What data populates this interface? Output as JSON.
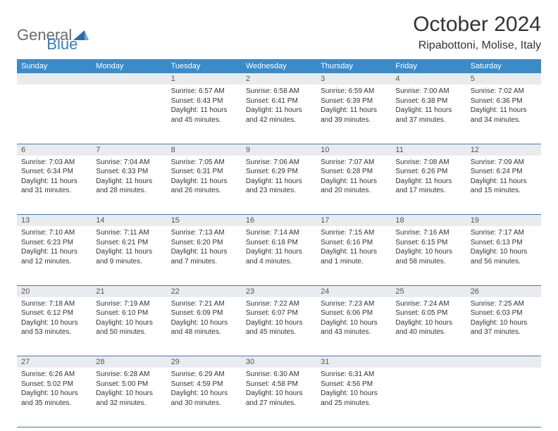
{
  "brand": {
    "part1": "General",
    "part2": "Blue"
  },
  "header": {
    "title": "October 2024",
    "location": "Ripabottoni, Molise, Italy"
  },
  "colors": {
    "header_bg": "#3b8bc9",
    "header_text": "#ffffff",
    "daynum_bg": "#e9ecef",
    "border": "#3b7bbf",
    "brand_gray": "#6b6b6b",
    "brand_blue": "#3b7bbf"
  },
  "dow": [
    "Sunday",
    "Monday",
    "Tuesday",
    "Wednesday",
    "Thursday",
    "Friday",
    "Saturday"
  ],
  "weeks": [
    [
      {
        "num": "",
        "sunrise": "",
        "sunset": "",
        "daylight": ""
      },
      {
        "num": "",
        "sunrise": "",
        "sunset": "",
        "daylight": ""
      },
      {
        "num": "1",
        "sunrise": "Sunrise: 6:57 AM",
        "sunset": "Sunset: 6:43 PM",
        "daylight": "Daylight: 11 hours and 45 minutes."
      },
      {
        "num": "2",
        "sunrise": "Sunrise: 6:58 AM",
        "sunset": "Sunset: 6:41 PM",
        "daylight": "Daylight: 11 hours and 42 minutes."
      },
      {
        "num": "3",
        "sunrise": "Sunrise: 6:59 AM",
        "sunset": "Sunset: 6:39 PM",
        "daylight": "Daylight: 11 hours and 39 minutes."
      },
      {
        "num": "4",
        "sunrise": "Sunrise: 7:00 AM",
        "sunset": "Sunset: 6:38 PM",
        "daylight": "Daylight: 11 hours and 37 minutes."
      },
      {
        "num": "5",
        "sunrise": "Sunrise: 7:02 AM",
        "sunset": "Sunset: 6:36 PM",
        "daylight": "Daylight: 11 hours and 34 minutes."
      }
    ],
    [
      {
        "num": "6",
        "sunrise": "Sunrise: 7:03 AM",
        "sunset": "Sunset: 6:34 PM",
        "daylight": "Daylight: 11 hours and 31 minutes."
      },
      {
        "num": "7",
        "sunrise": "Sunrise: 7:04 AM",
        "sunset": "Sunset: 6:33 PM",
        "daylight": "Daylight: 11 hours and 28 minutes."
      },
      {
        "num": "8",
        "sunrise": "Sunrise: 7:05 AM",
        "sunset": "Sunset: 6:31 PM",
        "daylight": "Daylight: 11 hours and 26 minutes."
      },
      {
        "num": "9",
        "sunrise": "Sunrise: 7:06 AM",
        "sunset": "Sunset: 6:29 PM",
        "daylight": "Daylight: 11 hours and 23 minutes."
      },
      {
        "num": "10",
        "sunrise": "Sunrise: 7:07 AM",
        "sunset": "Sunset: 6:28 PM",
        "daylight": "Daylight: 11 hours and 20 minutes."
      },
      {
        "num": "11",
        "sunrise": "Sunrise: 7:08 AM",
        "sunset": "Sunset: 6:26 PM",
        "daylight": "Daylight: 11 hours and 17 minutes."
      },
      {
        "num": "12",
        "sunrise": "Sunrise: 7:09 AM",
        "sunset": "Sunset: 6:24 PM",
        "daylight": "Daylight: 11 hours and 15 minutes."
      }
    ],
    [
      {
        "num": "13",
        "sunrise": "Sunrise: 7:10 AM",
        "sunset": "Sunset: 6:23 PM",
        "daylight": "Daylight: 11 hours and 12 minutes."
      },
      {
        "num": "14",
        "sunrise": "Sunrise: 7:11 AM",
        "sunset": "Sunset: 6:21 PM",
        "daylight": "Daylight: 11 hours and 9 minutes."
      },
      {
        "num": "15",
        "sunrise": "Sunrise: 7:13 AM",
        "sunset": "Sunset: 6:20 PM",
        "daylight": "Daylight: 11 hours and 7 minutes."
      },
      {
        "num": "16",
        "sunrise": "Sunrise: 7:14 AM",
        "sunset": "Sunset: 6:18 PM",
        "daylight": "Daylight: 11 hours and 4 minutes."
      },
      {
        "num": "17",
        "sunrise": "Sunrise: 7:15 AM",
        "sunset": "Sunset: 6:16 PM",
        "daylight": "Daylight: 11 hours and 1 minute."
      },
      {
        "num": "18",
        "sunrise": "Sunrise: 7:16 AM",
        "sunset": "Sunset: 6:15 PM",
        "daylight": "Daylight: 10 hours and 58 minutes."
      },
      {
        "num": "19",
        "sunrise": "Sunrise: 7:17 AM",
        "sunset": "Sunset: 6:13 PM",
        "daylight": "Daylight: 10 hours and 56 minutes."
      }
    ],
    [
      {
        "num": "20",
        "sunrise": "Sunrise: 7:18 AM",
        "sunset": "Sunset: 6:12 PM",
        "daylight": "Daylight: 10 hours and 53 minutes."
      },
      {
        "num": "21",
        "sunrise": "Sunrise: 7:19 AM",
        "sunset": "Sunset: 6:10 PM",
        "daylight": "Daylight: 10 hours and 50 minutes."
      },
      {
        "num": "22",
        "sunrise": "Sunrise: 7:21 AM",
        "sunset": "Sunset: 6:09 PM",
        "daylight": "Daylight: 10 hours and 48 minutes."
      },
      {
        "num": "23",
        "sunrise": "Sunrise: 7:22 AM",
        "sunset": "Sunset: 6:07 PM",
        "daylight": "Daylight: 10 hours and 45 minutes."
      },
      {
        "num": "24",
        "sunrise": "Sunrise: 7:23 AM",
        "sunset": "Sunset: 6:06 PM",
        "daylight": "Daylight: 10 hours and 43 minutes."
      },
      {
        "num": "25",
        "sunrise": "Sunrise: 7:24 AM",
        "sunset": "Sunset: 6:05 PM",
        "daylight": "Daylight: 10 hours and 40 minutes."
      },
      {
        "num": "26",
        "sunrise": "Sunrise: 7:25 AM",
        "sunset": "Sunset: 6:03 PM",
        "daylight": "Daylight: 10 hours and 37 minutes."
      }
    ],
    [
      {
        "num": "27",
        "sunrise": "Sunrise: 6:26 AM",
        "sunset": "Sunset: 5:02 PM",
        "daylight": "Daylight: 10 hours and 35 minutes."
      },
      {
        "num": "28",
        "sunrise": "Sunrise: 6:28 AM",
        "sunset": "Sunset: 5:00 PM",
        "daylight": "Daylight: 10 hours and 32 minutes."
      },
      {
        "num": "29",
        "sunrise": "Sunrise: 6:29 AM",
        "sunset": "Sunset: 4:59 PM",
        "daylight": "Daylight: 10 hours and 30 minutes."
      },
      {
        "num": "30",
        "sunrise": "Sunrise: 6:30 AM",
        "sunset": "Sunset: 4:58 PM",
        "daylight": "Daylight: 10 hours and 27 minutes."
      },
      {
        "num": "31",
        "sunrise": "Sunrise: 6:31 AM",
        "sunset": "Sunset: 4:56 PM",
        "daylight": "Daylight: 10 hours and 25 minutes."
      },
      {
        "num": "",
        "sunrise": "",
        "sunset": "",
        "daylight": ""
      },
      {
        "num": "",
        "sunrise": "",
        "sunset": "",
        "daylight": ""
      }
    ]
  ]
}
